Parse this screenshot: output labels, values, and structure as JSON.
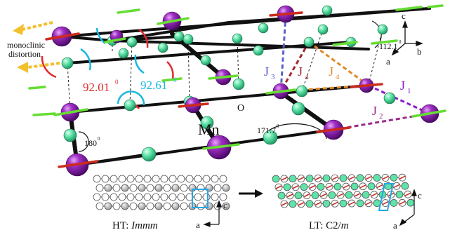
{
  "labels": {
    "monoclinic_distortion_line1": "monoclinic",
    "monoclinic_distortion_line2": "distortion",
    "angle_92_01": "92.01",
    "angle_92_61": "92.61",
    "angle_112_1": "112.1",
    "angle_171_7": "171.7",
    "angle_180": "180",
    "degree_mark": "0",
    "o_atom": "O",
    "mn_atom": "Mn",
    "j1": "J",
    "j1_sub": "1",
    "j2": "J",
    "j2_sub": "2",
    "j3": "J",
    "j3_sub": "3",
    "j4a": "J",
    "j4a_sub": "4",
    "j4b": "J",
    "j4b_sub": "4",
    "axis_c": "c",
    "axis_b": "b",
    "axis_a": "a",
    "ht_prefix": "HT: ",
    "ht_group": "Immm",
    "lt_prefix": "LT: C2/",
    "lt_group": "m",
    "inset_axis_c_left": "c",
    "inset_axis_a_left": "a",
    "inset_axis_c_right": "c",
    "inset_axis_a_right": "a"
  },
  "colors": {
    "mn": "#8a1aa8",
    "o": "#4fe0a0",
    "bond": "#111111",
    "cyan_angle": "#19b8e0",
    "red_angle": "#e0282c",
    "j1": "#8a1ad0",
    "j2": "#9a2a8a",
    "j3": "#5a62c8",
    "j4": "#a02a2a",
    "j4b": "#e08a2a",
    "arrow_green": "#66dd33",
    "arrow_red": "#cc2b1d",
    "yellow": "#f2c02a",
    "inset_cyan": "#22a8e8"
  }
}
